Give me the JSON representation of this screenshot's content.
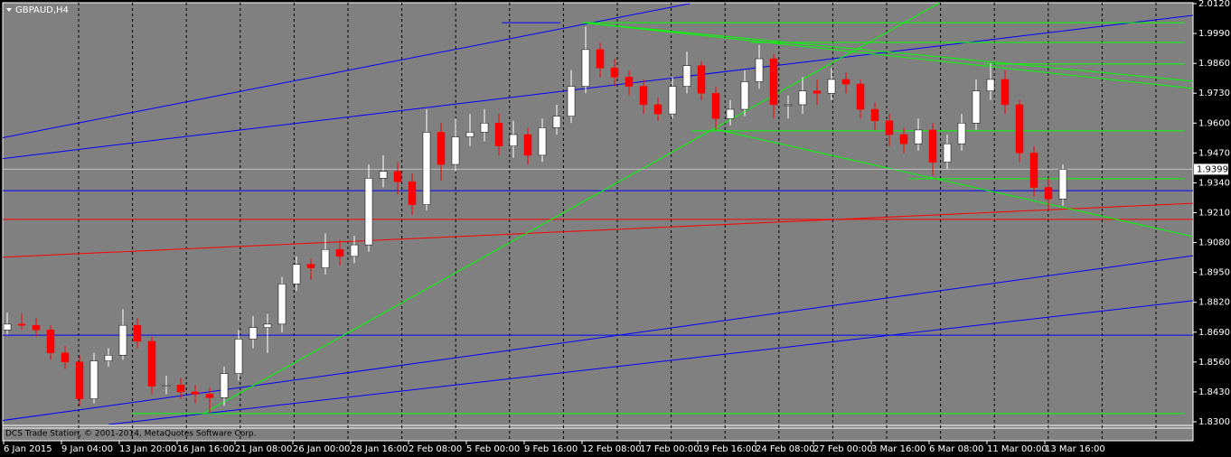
{
  "chart_data": {
    "type": "candlestick",
    "title": "GBPAUD,H4",
    "footer": "DCS Trade Station, © 2001-2014, MetaQuotes Software Corp.",
    "up_color": "#ffffff",
    "down_color": "#ff0000",
    "categories": [
      "6 Jan 2015",
      null,
      null,
      null,
      "9 Jan 04:00",
      null,
      null,
      null,
      "13 Jan 20:00",
      null,
      null,
      null,
      "16 Jan 16:00",
      null,
      null,
      null,
      "21 Jan 08:00",
      null,
      null,
      null,
      "26 Jan 00:00",
      null,
      null,
      null,
      "28 Jan 16:00",
      null,
      null,
      null,
      "2 Feb 08:00",
      null,
      null,
      null,
      "5 Feb 00:00",
      null,
      null,
      null,
      "9 Feb 16:00",
      null,
      null,
      null,
      "12 Feb 08:00",
      null,
      null,
      null,
      "17 Feb 00:00",
      null,
      null,
      null,
      "19 Feb 16:00",
      null,
      null,
      null,
      "24 Feb 08:00",
      null,
      null,
      null,
      "27 Feb 00:00",
      null,
      null,
      null,
      "3 Mar 16:00",
      null,
      null,
      null,
      "6 Mar 08:00",
      null,
      null,
      null,
      "11 Mar 00:00",
      null,
      null,
      null,
      "13 Mar 16:00",
      null
    ],
    "open": [
      1.87,
      1.8725,
      1.872,
      1.87,
      1.86,
      1.856,
      1.84,
      1.8565,
      1.859,
      1.872,
      1.865,
      1.8455,
      1.846,
      1.843,
      1.842,
      1.8405,
      1.851,
      1.866,
      1.871,
      1.8725,
      1.89,
      1.8985,
      1.897,
      1.905,
      1.902,
      1.907,
      1.936,
      1.939,
      1.9345,
      1.9245,
      1.956,
      1.942,
      1.954,
      1.956,
      1.96,
      1.95,
      1.955,
      1.946,
      1.958,
      1.963,
      1.976,
      1.992,
      1.984,
      1.98,
      1.976,
      1.968,
      1.964,
      1.976,
      1.985,
      1.973,
      1.962,
      1.966,
      1.978,
      1.988,
      1.968,
      1.968,
      1.974,
      1.973,
      1.979,
      1.977,
      1.966,
      1.961,
      1.955,
      1.951,
      1.957,
      1.943,
      1.951,
      1.96,
      1.974,
      1.979,
      1.968,
      1.947,
      1.932,
      1.927
    ],
    "high": [
      1.8775,
      1.877,
      1.875,
      1.872,
      1.863,
      1.859,
      1.86,
      1.862,
      1.879,
      1.875,
      1.867,
      1.85,
      1.849,
      1.846,
      1.845,
      1.854,
      1.87,
      1.876,
      1.877,
      1.893,
      1.902,
      1.901,
      1.912,
      1.909,
      1.911,
      1.942,
      1.946,
      1.943,
      1.938,
      1.966,
      1.96,
      1.962,
      1.964,
      1.966,
      1.964,
      1.961,
      1.958,
      1.962,
      1.968,
      1.983,
      2.002,
      1.995,
      1.988,
      1.983,
      1.979,
      1.971,
      1.98,
      1.991,
      1.987,
      1.976,
      1.97,
      1.983,
      1.994,
      1.99,
      1.972,
      1.98,
      1.979,
      1.984,
      1.982,
      1.979,
      1.969,
      1.964,
      1.958,
      1.962,
      1.96,
      1.955,
      1.964,
      1.979,
      1.986,
      1.983,
      1.97,
      1.95,
      1.936,
      1.942
    ],
    "low": [
      1.868,
      1.87,
      1.867,
      1.857,
      1.853,
      1.837,
      1.838,
      1.854,
      1.857,
      1.862,
      1.842,
      1.842,
      1.84,
      1.838,
      1.834,
      1.837,
      1.848,
      1.862,
      1.86,
      1.869,
      1.887,
      1.892,
      1.894,
      1.898,
      1.899,
      1.904,
      1.932,
      1.929,
      1.92,
      1.922,
      1.935,
      1.939,
      1.95,
      1.952,
      1.946,
      1.945,
      1.942,
      1.943,
      1.955,
      1.96,
      1.973,
      1.98,
      1.976,
      1.972,
      1.964,
      1.961,
      1.962,
      1.973,
      1.97,
      1.957,
      1.959,
      1.963,
      1.975,
      1.962,
      1.962,
      1.964,
      1.968,
      1.97,
      1.973,
      1.962,
      1.957,
      1.95,
      1.947,
      1.948,
      1.937,
      1.94,
      1.948,
      1.957,
      1.97,
      1.964,
      1.943,
      1.928,
      1.922,
      1.924
    ],
    "close": [
      1.8725,
      1.872,
      1.87,
      1.86,
      1.856,
      1.84,
      1.8565,
      1.859,
      1.872,
      1.865,
      1.8455,
      1.846,
      1.843,
      1.842,
      1.8405,
      1.851,
      1.866,
      1.871,
      1.8725,
      1.89,
      1.8985,
      1.897,
      1.905,
      1.902,
      1.907,
      1.936,
      1.939,
      1.9345,
      1.9245,
      1.956,
      1.942,
      1.954,
      1.956,
      1.96,
      1.95,
      1.955,
      1.946,
      1.958,
      1.963,
      1.976,
      1.992,
      1.984,
      1.98,
      1.976,
      1.968,
      1.964,
      1.976,
      1.985,
      1.973,
      1.962,
      1.966,
      1.978,
      1.988,
      1.968,
      1.968,
      1.974,
      1.973,
      1.979,
      1.977,
      1.966,
      1.961,
      1.955,
      1.951,
      1.957,
      1.943,
      1.951,
      1.96,
      1.974,
      1.979,
      1.968,
      1.947,
      1.932,
      1.927,
      1.9399
    ],
    "current_price": 1.9399,
    "ylim": [
      1.83,
      2.012
    ],
    "yticks": [
      {
        "value": 2.012,
        "label": "2.0120"
      },
      {
        "value": 1.999,
        "label": "1.9990"
      },
      {
        "value": 1.986,
        "label": "1.9860"
      },
      {
        "value": 1.973,
        "label": "1.9730"
      },
      {
        "value": 1.96,
        "label": "1.9600"
      },
      {
        "value": 1.947,
        "label": "1.9470"
      },
      {
        "value": 1.934,
        "label": "1.9340"
      },
      {
        "value": 1.921,
        "label": "1.9210"
      },
      {
        "value": 1.908,
        "label": "1.9080"
      },
      {
        "value": 1.895,
        "label": "1.8950"
      },
      {
        "value": 1.882,
        "label": "1.8820"
      },
      {
        "value": 1.869,
        "label": "1.8690"
      },
      {
        "value": 1.856,
        "label": "1.8560"
      },
      {
        "value": 1.843,
        "label": "1.8430"
      },
      {
        "value": 1.83,
        "label": "1.8300"
      }
    ],
    "trendlines": [
      {
        "color": "#0000ff",
        "x": [
          -0.5,
          47.2
        ],
        "y": [
          1.9534,
          2.012
        ]
      },
      {
        "color": "#0000ff",
        "x": [
          -0.5,
          82.0
        ],
        "y": [
          1.9444,
          2.0069
        ]
      },
      {
        "color": "#0000ff",
        "x": [
          -0.5,
          82.0
        ],
        "y": [
          1.8304,
          1.9023
        ]
      },
      {
        "color": "#0000ff",
        "x": [
          7.0,
          82.0
        ],
        "y": [
          1.8288,
          1.8827
        ]
      },
      {
        "color": "#0000ff",
        "x": [
          -0.5,
          82.0
        ],
        "y": [
          1.9306,
          1.9306
        ]
      },
      {
        "color": "#0000ff",
        "x": [
          -0.5,
          82.0
        ],
        "y": [
          1.8677,
          1.8677
        ]
      },
      {
        "color": "#0000ff",
        "x": [
          34.2,
          38.25
        ],
        "y": [
          2.0037,
          2.0037
        ]
      },
      {
        "color": "#ff0000",
        "x": [
          -0.5,
          82.0
        ],
        "y": [
          1.9016,
          1.9251
        ]
      },
      {
        "color": "#ff0000",
        "x": [
          -0.5,
          82.0
        ],
        "y": [
          1.9181,
          1.9181
        ]
      },
      {
        "color": "#00ff00",
        "x": [
          13.56,
          64.5
        ],
        "y": [
          1.8336,
          2.0124
        ]
      },
      {
        "color": "#00ff00",
        "x": [
          39.8,
          82.0
        ],
        "y": [
          2.0037,
          1.9751
        ]
      },
      {
        "color": "#00ff00",
        "x": [
          39.8,
          82.0
        ],
        "y": [
          2.0037,
          1.9782
        ]
      },
      {
        "color": "#00ff00",
        "x": [
          39.8,
          81.4
        ],
        "y": [
          2.0037,
          2.0037
        ]
      },
      {
        "color": "#00ff00",
        "x": [
          51.4,
          81.4
        ],
        "y": [
          1.9951,
          1.9951
        ]
      },
      {
        "color": "#00ff00",
        "x": [
          67.6,
          81.4
        ],
        "y": [
          1.9857,
          1.9857
        ]
      },
      {
        "color": "#00ff00",
        "x": [
          47.3,
          81.4
        ],
        "y": [
          1.9566,
          1.9566
        ]
      },
      {
        "color": "#00ff00",
        "x": [
          62.3,
          81.4
        ],
        "y": [
          1.9358,
          1.9358
        ]
      },
      {
        "color": "#00ff00",
        "x": [
          8.6,
          81.4
        ],
        "y": [
          1.8336,
          1.8336
        ]
      },
      {
        "color": "#00ff00",
        "x": [
          48.9,
          82.0
        ],
        "y": [
          1.9574,
          1.9106
        ]
      }
    ]
  }
}
